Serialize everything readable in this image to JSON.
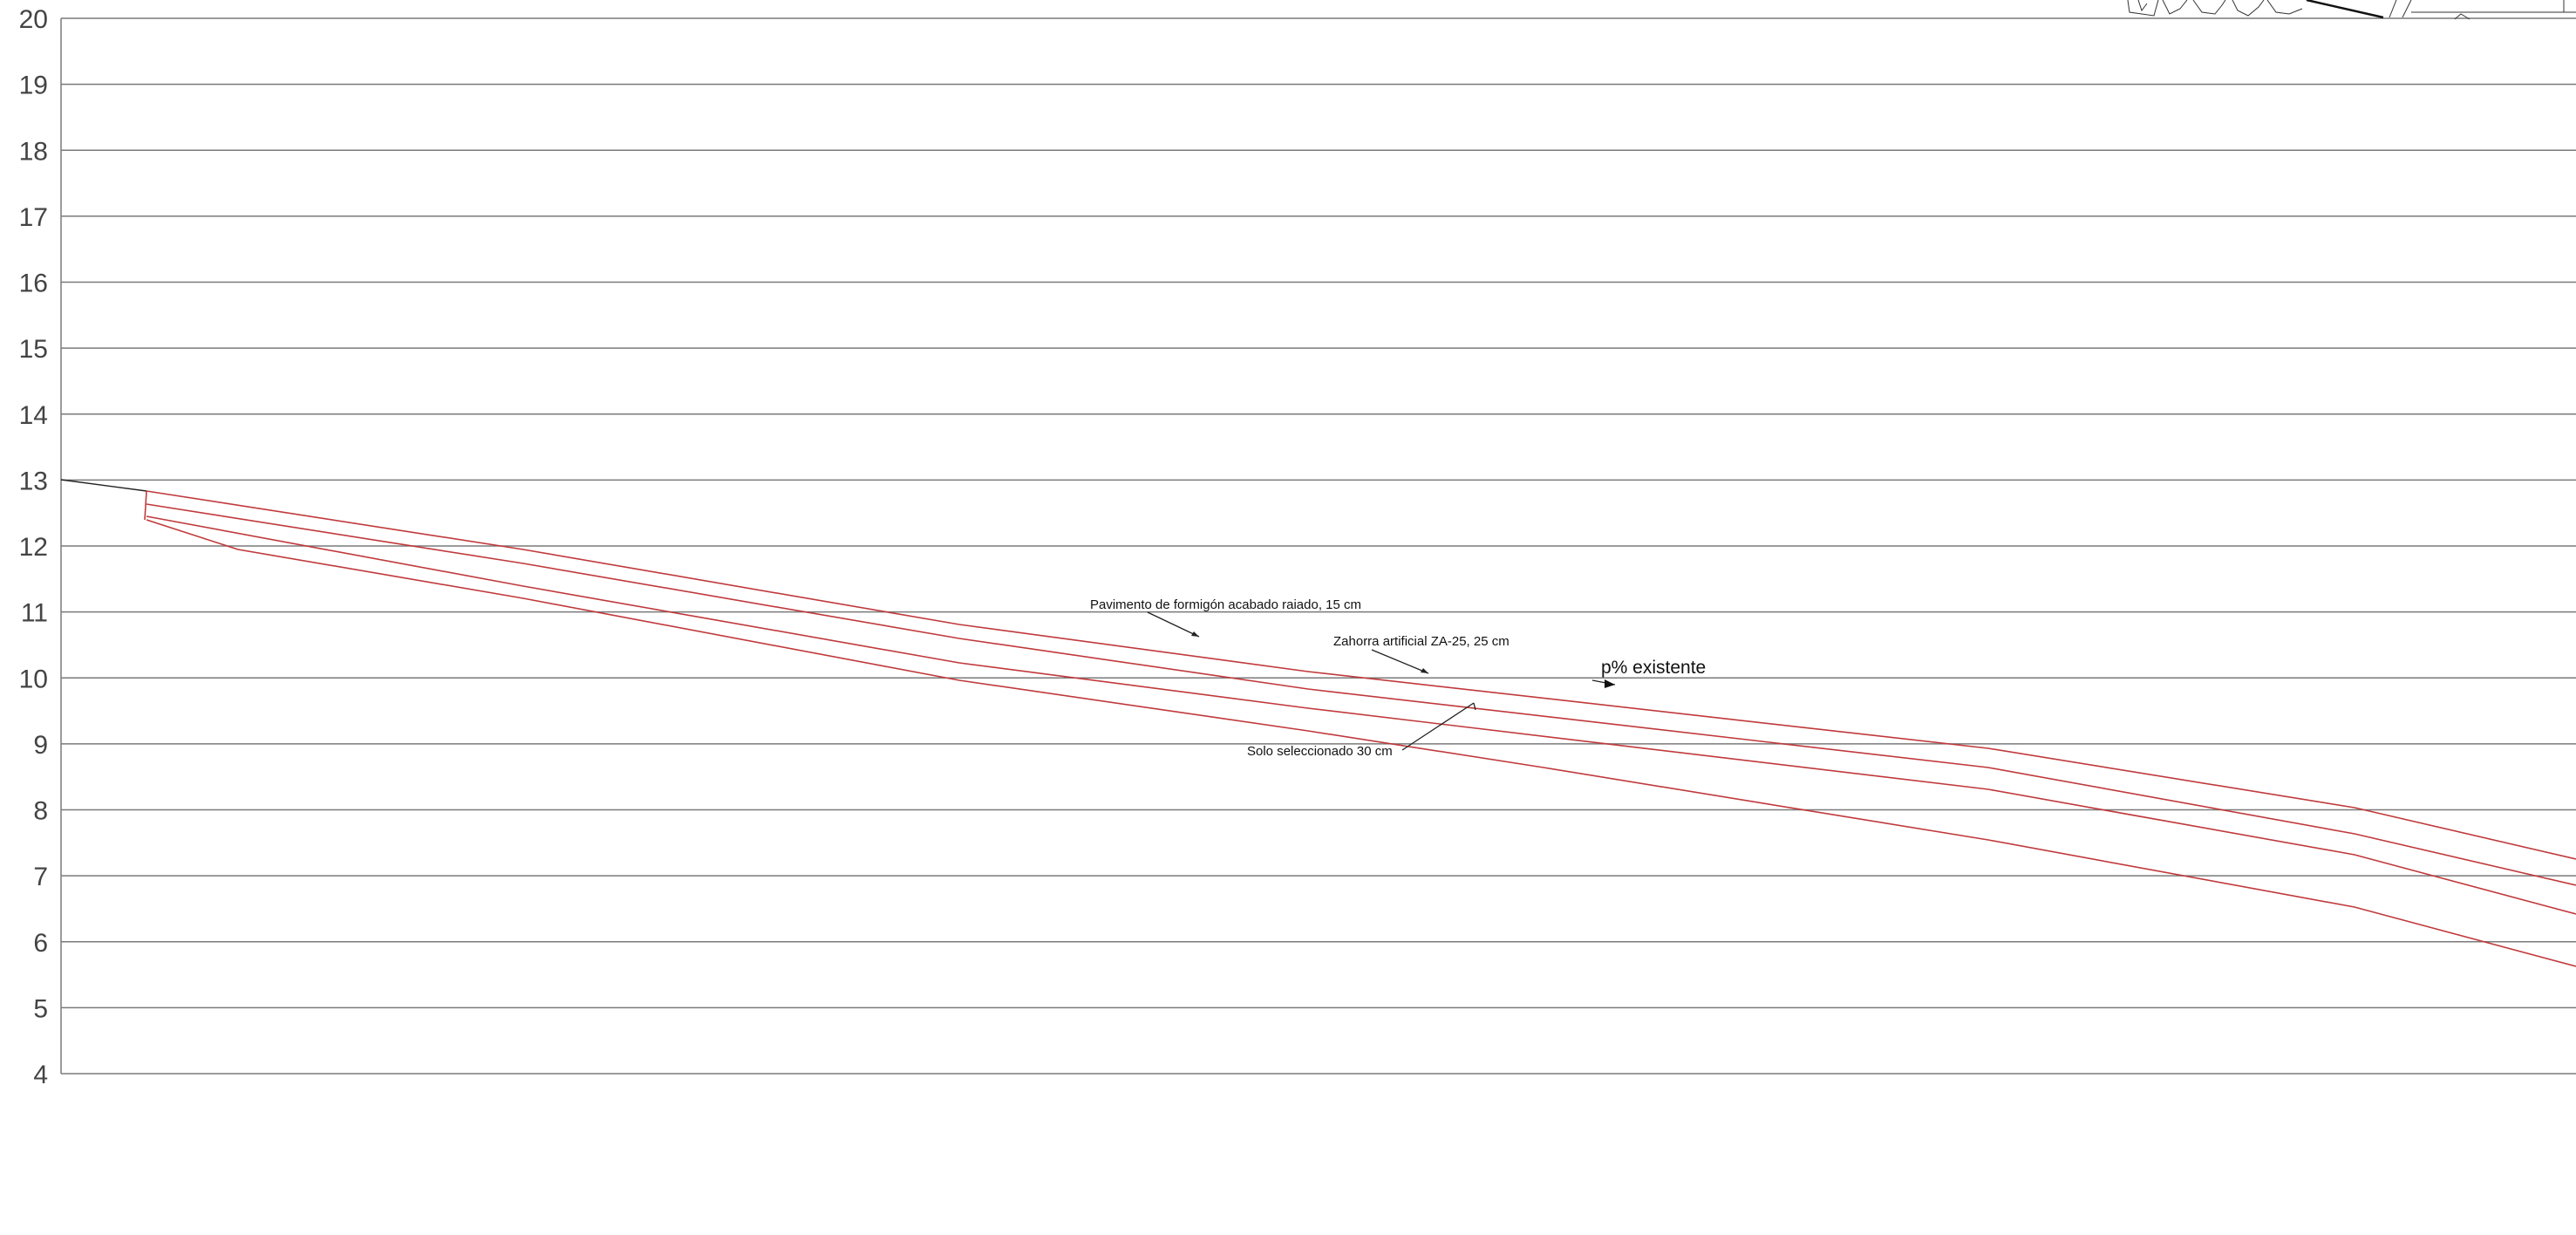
{
  "section_drawing": {
    "y_axis": {
      "ticks": [
        "20",
        "19",
        "18",
        "17",
        "16",
        "15",
        "14",
        "13",
        "12",
        "11",
        "10",
        "9",
        "8",
        "7",
        "6",
        "5",
        "4"
      ],
      "min": 4,
      "max": 20
    },
    "colors": {
      "grid": "#7a7a7a",
      "layers": "#c0393b",
      "text": "#111111"
    },
    "annotations": {
      "pavement": "Pavimento de formigón acabado raiado, 15 cm",
      "base": "Zahorra artificial ZA-25, 25 cm",
      "subgrade": "Solo seleccionado 30 cm",
      "slope": "p% existente"
    }
  }
}
